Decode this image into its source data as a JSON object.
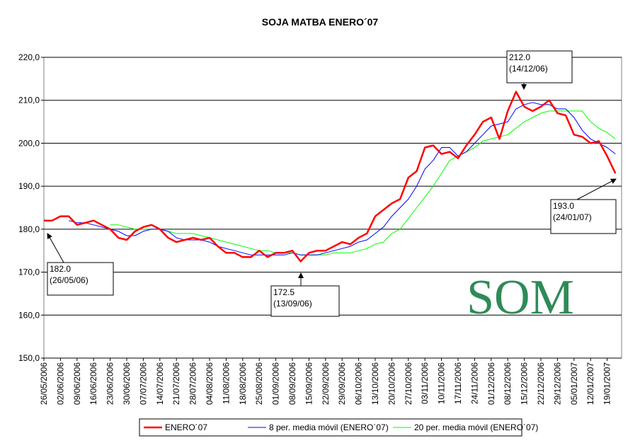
{
  "chart_data": {
    "type": "line",
    "title": "SOJA MATBA ENERO´07",
    "watermark": "SOM",
    "categories": [
      "26/05/2006",
      null,
      "02/06/2006",
      null,
      "09/06/2006",
      null,
      "16/06/2006",
      null,
      "23/06/2006",
      null,
      "30/06/2006",
      null,
      "07/07/2006",
      null,
      "14/07/2006",
      null,
      "21/07/2006",
      null,
      "28/07/2006",
      null,
      "04/08/2006",
      null,
      "11/08/2006",
      null,
      "18/08/2006",
      null,
      "25/08/2006",
      null,
      "01/09/2006",
      null,
      "08/09/2006",
      null,
      "15/09/2006",
      null,
      "22/09/2006",
      null,
      "29/09/2006",
      null,
      "06/10/2006",
      null,
      "13/10/2006",
      null,
      "20/10/2006",
      null,
      "27/10/2006",
      null,
      "03/11/2006",
      null,
      "10/11/2006",
      null,
      "17/11/2006",
      null,
      "24/11/2006",
      null,
      "01/12/2006",
      null,
      "08/12/2006",
      null,
      "15/12/2006",
      null,
      "22/12/2006",
      null,
      "29/12/2006",
      null,
      "05/01/2007",
      null,
      "12/01/2007",
      null,
      "19/01/2007",
      null
    ],
    "series": [
      {
        "name": "ENERO´07",
        "color": "#ff0000",
        "width": 2.5,
        "values": [
          182,
          182,
          183,
          183,
          181,
          181.5,
          182,
          181,
          180,
          178,
          177.5,
          179.5,
          180.5,
          181,
          180,
          178,
          177,
          177.5,
          178,
          177.5,
          178,
          176,
          174.5,
          174.5,
          173.5,
          173.5,
          175,
          173.5,
          174.5,
          174.5,
          175,
          172.5,
          174.5,
          175,
          175,
          176,
          177,
          176.5,
          178,
          179,
          183,
          184.5,
          186,
          187,
          192,
          193.5,
          199,
          199.5,
          197.5,
          198,
          196.5,
          199.5,
          202,
          205,
          206,
          201,
          207.5,
          212,
          208.5,
          207.5,
          208.5,
          210,
          207,
          206.5,
          202,
          201.5,
          200,
          200.5,
          197,
          193
        ]
      },
      {
        "name": "8 per. media móvil (ENERO´07)",
        "color": "#0000ff",
        "width": 1,
        "values": [
          null,
          null,
          null,
          182,
          181.5,
          181.5,
          181,
          180.5,
          180,
          179.5,
          178.5,
          178.5,
          179.5,
          180,
          180,
          179.5,
          178,
          177.5,
          177.5,
          177.5,
          177,
          176,
          175.5,
          175,
          174.5,
          174,
          174,
          174,
          174,
          174,
          174.5,
          174,
          174,
          174,
          174.5,
          175,
          175.5,
          176,
          177,
          177.5,
          179,
          180.5,
          183,
          185,
          187,
          190,
          194,
          196,
          199,
          199,
          197,
          198,
          200,
          202,
          204,
          204.5,
          205,
          208,
          209,
          209.5,
          209,
          209,
          208,
          208,
          206,
          203,
          201,
          200,
          199,
          197.5
        ]
      },
      {
        "name": "20 per. media móvil (ENERO´07)",
        "color": "#00ff00",
        "width": 1,
        "values": [
          null,
          null,
          null,
          null,
          null,
          null,
          null,
          null,
          181,
          181,
          180.5,
          180,
          180,
          180,
          180,
          179.5,
          179,
          179,
          179,
          178.5,
          178,
          177.5,
          177,
          176.5,
          176,
          175.5,
          175,
          175,
          174.5,
          174.5,
          174.5,
          174,
          174,
          174,
          174,
          174.5,
          174.5,
          174.5,
          175,
          175.5,
          176.5,
          177,
          179,
          180,
          182.5,
          185,
          187.5,
          190,
          193,
          196,
          197,
          198,
          199,
          200.5,
          201,
          201.5,
          202,
          203.5,
          205,
          206,
          207,
          207.5,
          207.5,
          207.5,
          207.5,
          207.5,
          205,
          203.5,
          202.5,
          201
        ]
      }
    ],
    "ylim": [
      150,
      220
    ],
    "yticks": [
      {
        "value": 150,
        "label": "150,0"
      },
      {
        "value": 160,
        "label": "160,0"
      },
      {
        "value": 170,
        "label": "170,0"
      },
      {
        "value": 180,
        "label": "180,0"
      },
      {
        "value": 190,
        "label": "190,0"
      },
      {
        "value": 200,
        "label": "200,0"
      },
      {
        "value": 210,
        "label": "210,0"
      },
      {
        "value": 220,
        "label": "220,0"
      }
    ],
    "grid": true,
    "legend": "bottom",
    "annotations": [
      {
        "lines": [
          "182.0",
          "(26/05/06)"
        ]
      },
      {
        "lines": [
          "172.5",
          "(13/09/06)"
        ]
      },
      {
        "lines": [
          "212.0",
          "(14/12/06)"
        ]
      },
      {
        "lines": [
          "193.0",
          "(24/01/07)"
        ]
      }
    ]
  }
}
